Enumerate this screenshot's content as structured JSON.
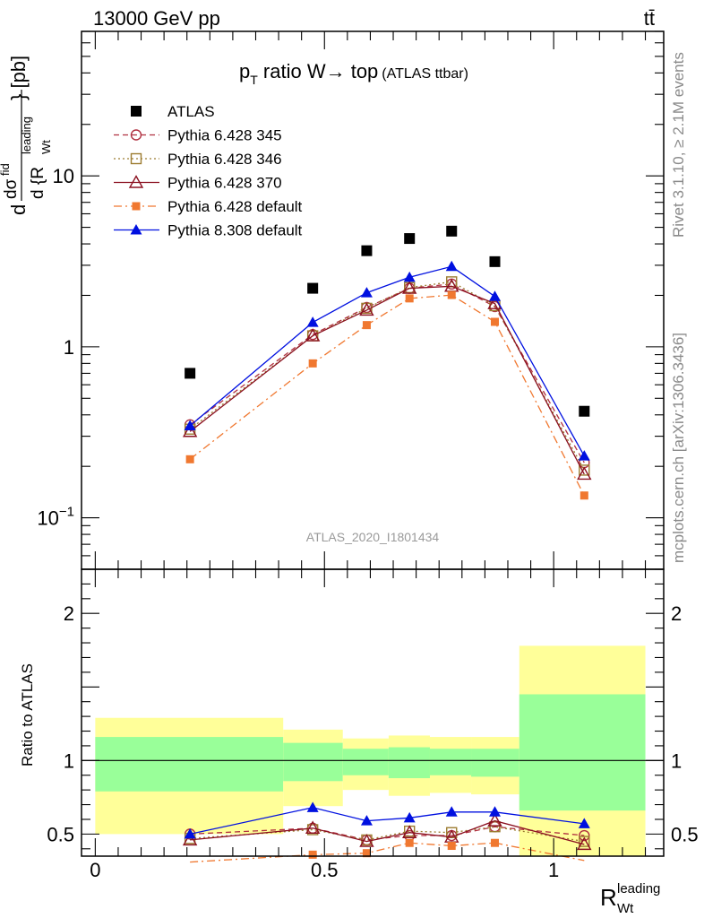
{
  "header": {
    "energy": "13000 GeV pp",
    "process": "tt̄"
  },
  "side_labels": {
    "version": "Rivet 3.1.10, ≥ 2.1M events",
    "source": "mcplots.cern.ch [arXiv:1306.3436]"
  },
  "colors": {
    "atlas": "#000000",
    "p345": "#b03040",
    "p346": "#9c7c30",
    "p370": "#8b1020",
    "pdef": "#f07830",
    "p8": "#0010e0",
    "band_inner": "#99ff99",
    "band_outer": "#ffff99"
  },
  "chart_data": [
    {
      "type": "line",
      "title_main": "p",
      "title_sub": "T",
      "title_rest": " ratio W→ top",
      "title_small": "(ATLAS ttbar)",
      "ylabel_pre": "d",
      "ylabel_frac_num": "dσ",
      "ylabel_frac_num_sup": "fid",
      "ylabel_frac_den": "d {R",
      "ylabel_frac_den_sup": "leading",
      "ylabel_frac_den_sub": "Wt",
      "ylabel_post": "} [pb]",
      "yscale": "log",
      "ylim": [
        0.05,
        70
      ],
      "xlim": [
        -0.03,
        1.24
      ],
      "yticks": [
        {
          "v": 10,
          "label": "10"
        },
        {
          "v": 1,
          "label": "1"
        },
        {
          "v": 0.1,
          "label": "10",
          "sup": "−1"
        }
      ],
      "watermark": "ATLAS_2020_I1801434",
      "x": [
        0.2067,
        0.4744,
        0.5922,
        0.6855,
        0.7774,
        0.8717,
        1.0667
      ],
      "series": [
        {
          "key": "atlas",
          "name": "ATLAS",
          "marker": "square",
          "line": "none",
          "values": [
            0.7,
            2.2,
            3.65,
            4.3,
            4.75,
            3.15,
            0.42
          ]
        },
        {
          "key": "p345",
          "name": "Pythia 6.428 345",
          "marker": "circle-open",
          "line": "dashed",
          "values": [
            0.35,
            1.18,
            1.7,
            2.2,
            2.33,
            1.72,
            0.21
          ]
        },
        {
          "key": "p346",
          "name": "Pythia 6.428 346",
          "marker": "square-open",
          "line": "dotted",
          "values": [
            0.33,
            1.16,
            1.68,
            2.22,
            2.4,
            1.74,
            0.19
          ]
        },
        {
          "key": "p370",
          "name": "Pythia 6.428 370",
          "marker": "triangle-open",
          "line": "solid",
          "values": [
            0.32,
            1.16,
            1.64,
            2.2,
            2.26,
            1.79,
            0.18
          ]
        },
        {
          "key": "pdef",
          "name": "Pythia 6.428 default",
          "marker": "square-small",
          "line": "dashdot",
          "values": [
            0.22,
            0.8,
            1.34,
            1.92,
            2.01,
            1.4,
            0.135
          ]
        },
        {
          "key": "p8",
          "name": "Pythia 8.308 default",
          "marker": "triangle",
          "line": "solid",
          "values": [
            0.345,
            1.39,
            2.07,
            2.55,
            2.95,
            1.97,
            0.23
          ]
        }
      ]
    },
    {
      "type": "line",
      "ylabel": "Ratio to ATLAS",
      "xlabel_main": "R",
      "xlabel_sup": "leading",
      "xlabel_sub": "Wt",
      "ylim": [
        0.35,
        2.3
      ],
      "xlim": [
        -0.03,
        1.24
      ],
      "xticks": [
        {
          "v": 0,
          "label": "0"
        },
        {
          "v": 0.5,
          "label": "0.5"
        },
        {
          "v": 1,
          "label": "1"
        }
      ],
      "yticks": [
        {
          "v": 0.5,
          "label": "0.5"
        },
        {
          "v": 1,
          "label": "1"
        },
        {
          "v": 2,
          "label": "2"
        }
      ],
      "bins": [
        {
          "lo": 0.0,
          "hi": 0.41,
          "inner": [
            0.79,
            1.16
          ],
          "outer": [
            0.5,
            1.29
          ]
        },
        {
          "lo": 0.41,
          "hi": 0.54,
          "inner": [
            0.86,
            1.12
          ],
          "outer": [
            0.69,
            1.21
          ]
        },
        {
          "lo": 0.54,
          "hi": 0.64,
          "inner": [
            0.9,
            1.08
          ],
          "outer": [
            0.8,
            1.15
          ]
        },
        {
          "lo": 0.64,
          "hi": 0.73,
          "inner": [
            0.88,
            1.09
          ],
          "outer": [
            0.76,
            1.17
          ]
        },
        {
          "lo": 0.73,
          "hi": 0.82,
          "inner": [
            0.9,
            1.08
          ],
          "outer": [
            0.78,
            1.16
          ]
        },
        {
          "lo": 0.82,
          "hi": 0.925,
          "inner": [
            0.89,
            1.08
          ],
          "outer": [
            0.77,
            1.16
          ]
        },
        {
          "lo": 0.925,
          "hi": 1.2,
          "inner": [
            0.66,
            1.45
          ],
          "outer": [
            0.0,
            1.78
          ]
        }
      ],
      "x": [
        0.2067,
        0.4744,
        0.5922,
        0.6855,
        0.7774,
        0.8717,
        1.0667
      ],
      "series": [
        {
          "key": "p345",
          "values": [
            0.5,
            0.54,
            0.46,
            0.49,
            0.49,
            0.55,
            0.49
          ]
        },
        {
          "key": "p346",
          "values": [
            0.47,
            0.53,
            0.46,
            0.52,
            0.51,
            0.55,
            0.45
          ]
        },
        {
          "key": "p370",
          "values": [
            0.46,
            0.54,
            0.45,
            0.51,
            0.48,
            0.59,
            0.43
          ]
        },
        {
          "key": "pdef",
          "values": [
            0.31,
            0.36,
            0.37,
            0.44,
            0.42,
            0.44,
            0.32
          ]
        },
        {
          "key": "p8",
          "values": [
            0.5,
            0.68,
            0.59,
            0.61,
            0.65,
            0.65,
            0.57
          ]
        }
      ]
    }
  ]
}
